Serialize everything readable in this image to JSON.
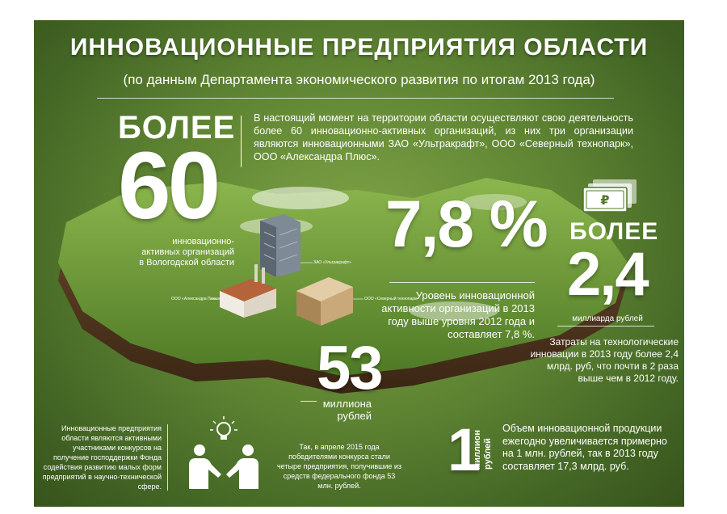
{
  "header": {
    "title": "ИННОВАЦИОННЫЕ ПРЕДПРИЯТИЯ ОБЛАСТИ",
    "subtitle": "(по данным Департамента экономического развития по итогам 2013 года)"
  },
  "intro": "В настоящий момент на территории области осуществляют свою деятельность более 60 инновационно-активных организаций, из них три организации являются инновационными ЗАО «Ультракрафт», ООО «Северный технопарк», ООО «Александра Плюс».",
  "stat_orgs": {
    "prefix": "БОЛЕЕ",
    "value": "60",
    "caption_line1": "инновационно-",
    "caption_line2": "активных организаций",
    "caption_line3": "в Вологодской области"
  },
  "stat_activity": {
    "value": "7,8 %",
    "caption": "Уровень инновационной активности организаций в 2013 году выше уровня 2012 года и составляет 7,8 %."
  },
  "stat_costs": {
    "prefix": "БОЛЕЕ",
    "value": "2,4",
    "unit": "миллиарда рублей",
    "caption": "Затраты на технологические инновации в 2013 году более 2,4 млрд. руб, что почти в 2 раза выше чем в 2012 году.",
    "currency_symbol": "₽"
  },
  "stat_grants": {
    "value": "53",
    "unit_line1": "миллиона",
    "unit_line2": "рублей",
    "caption": "Так, в апреле 2015 года победителями конкурса стали четыре предприятия, получившие из средств федерального фонда 53 млн. рублей."
  },
  "left_caption": "Инновационные предприятия области являются активными участниками конкурсов на получение господдержки Фонда содействия развитию малых форм предприятий в научно-технической сфере.",
  "stat_products": {
    "value": "1",
    "unit_line1": "миллион",
    "unit_line2": "рублей",
    "caption": "Объем инновационной продукции ежегодно увеличивается примерно на 1 млн. рублей, так в 2013 году составляет 17,3 млрд. руб."
  },
  "map_labels": {
    "company1": "ЗАО «Ультракрафт»",
    "company2": "ООО «Александра Плюс»",
    "company3": "ООО «Северный технопарк»"
  },
  "icons": [
    "banknote-icon",
    "lightbulb-icon",
    "handshake-icon"
  ],
  "colors": {
    "background": "#5f8533",
    "text": "#ffffff"
  }
}
